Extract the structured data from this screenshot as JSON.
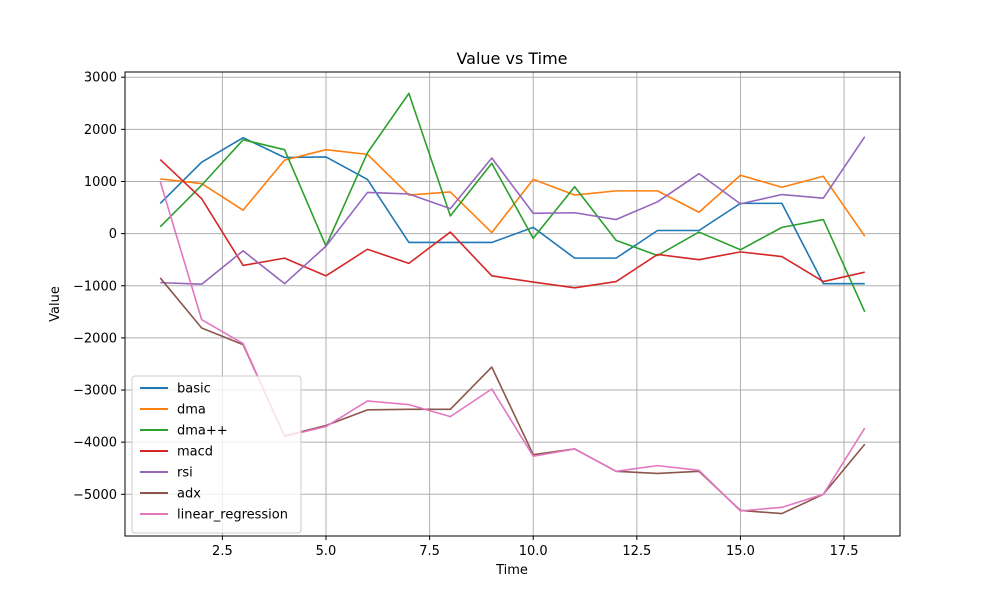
{
  "chart_data": {
    "type": "line",
    "title": "Value vs Time",
    "xlabel": "Time",
    "ylabel": "Value",
    "xlim": [
      0.15,
      18.85
    ],
    "ylim": [
      -5800,
      3100
    ],
    "x_ticks": [
      2.5,
      5.0,
      7.5,
      10.0,
      12.5,
      15.0,
      17.5
    ],
    "x_tick_labels": [
      "2.5",
      "5.0",
      "7.5",
      "10.0",
      "12.5",
      "15.0",
      "17.5"
    ],
    "y_ticks": [
      -5000,
      -4000,
      -3000,
      -2000,
      -1000,
      0,
      1000,
      2000,
      3000
    ],
    "y_tick_labels": [
      "−5000",
      "−4000",
      "−3000",
      "−2000",
      "−1000",
      "0",
      "1000",
      "2000",
      "3000"
    ],
    "grid": true,
    "legend_position": "lower-left",
    "x": [
      1,
      2,
      3,
      4,
      5,
      6,
      7,
      8,
      9,
      10,
      11,
      12,
      13,
      14,
      15,
      16,
      17,
      18
    ],
    "series": [
      {
        "name": "basic",
        "color": "#1f77b4",
        "values": [
          580,
          1370,
          1840,
          1460,
          1470,
          1040,
          -170,
          -170,
          -170,
          120,
          -470,
          -470,
          60,
          60,
          580,
          580,
          -960,
          -960
        ]
      },
      {
        "name": "dma",
        "color": "#ff7f0e",
        "values": [
          1050,
          960,
          450,
          1410,
          1610,
          1520,
          740,
          800,
          20,
          1040,
          740,
          820,
          820,
          410,
          1120,
          890,
          1100,
          -50
        ]
      },
      {
        "name": "dma++",
        "color": "#2ca02c",
        "values": [
          130,
          930,
          1800,
          1610,
          -240,
          1550,
          2690,
          340,
          1350,
          -90,
          900,
          -130,
          -420,
          30,
          -310,
          120,
          270,
          -1500
        ]
      },
      {
        "name": "macd",
        "color": "#d62728",
        "values": [
          1420,
          670,
          -610,
          -470,
          -810,
          -300,
          -570,
          30,
          -810,
          -930,
          -1040,
          -920,
          -400,
          -500,
          -350,
          -440,
          -920,
          -740
        ]
      },
      {
        "name": "rsi",
        "color": "#9467bd",
        "values": [
          -940,
          -970,
          -330,
          -960,
          -240,
          790,
          760,
          480,
          1450,
          390,
          400,
          270,
          610,
          1150,
          570,
          750,
          680,
          1860
        ]
      },
      {
        "name": "adx",
        "color": "#8c564b",
        "values": [
          -850,
          -1810,
          -2130,
          -3880,
          -3680,
          -3380,
          -3370,
          -3370,
          -2560,
          -4240,
          -4130,
          -4560,
          -4600,
          -4560,
          -5310,
          -5370,
          -5000,
          -4040
        ]
      },
      {
        "name": "linear_regression",
        "color": "#e377c2",
        "values": [
          1000,
          -1650,
          -2110,
          -3890,
          -3700,
          -3210,
          -3280,
          -3510,
          -2980,
          -4270,
          -4130,
          -4560,
          -4450,
          -4540,
          -5320,
          -5250,
          -5000,
          -3730
        ]
      }
    ]
  }
}
